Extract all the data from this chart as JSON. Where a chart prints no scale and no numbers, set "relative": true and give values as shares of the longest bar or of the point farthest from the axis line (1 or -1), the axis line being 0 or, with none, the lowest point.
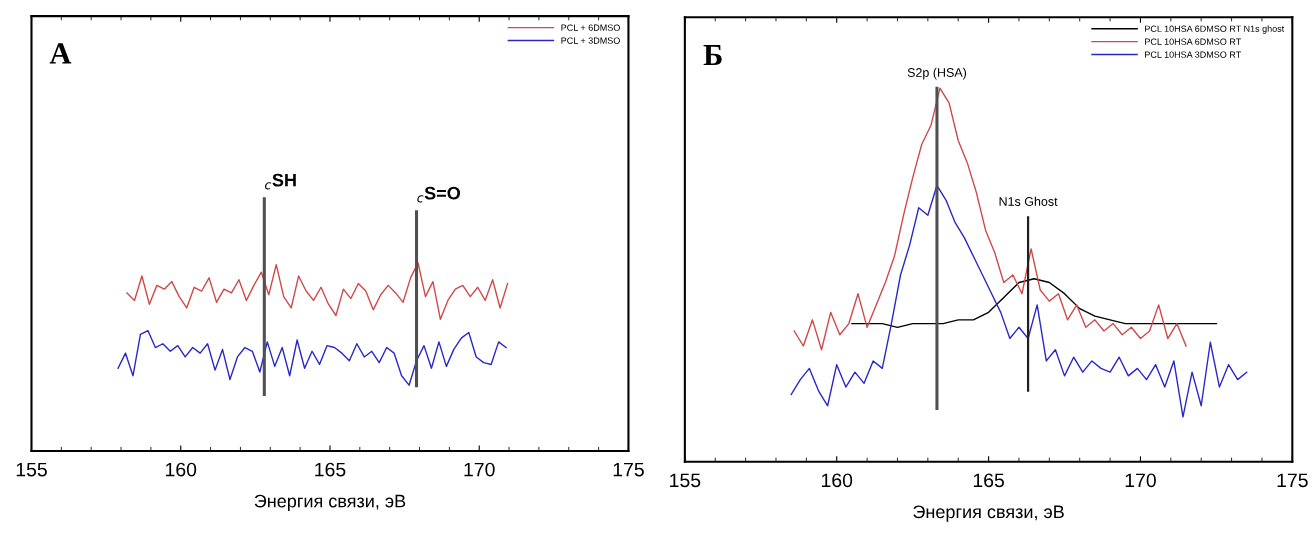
{
  "chart_data": [
    {
      "type": "line",
      "relative": true,
      "xlabel": "Энергия связи, эВ",
      "xlim": [
        155,
        175
      ],
      "xticks": [
        155,
        160,
        165,
        170,
        175
      ],
      "legend": "top right",
      "grid": false,
      "annotations": [
        "A"
      ],
      "ref_lines": [
        {
          "axis": "x",
          "value": 162.8,
          "label": "$_{c}$SH",
          "color": "#505050"
        },
        {
          "axis": "x",
          "value": 167.9,
          "label": "$_{c}$S=O",
          "color": "#505050"
        }
      ],
      "series": [
        {
          "name": "PCL + 6DMSO",
          "color": "#d04848",
          "x": [
            158.2,
            158.45,
            158.7,
            158.95,
            159.2,
            159.45,
            159.7,
            159.95,
            160.2,
            160.45,
            160.7,
            160.95,
            161.2,
            161.45,
            161.7,
            161.95,
            162.2,
            162.45,
            162.7,
            162.95,
            163.2,
            163.45,
            163.7,
            163.95,
            164.2,
            164.45,
            164.7,
            164.95,
            165.2,
            165.45,
            165.7,
            165.95,
            166.2,
            166.45,
            166.7,
            166.95,
            167.2,
            167.45,
            167.7,
            167.95,
            168.2,
            168.45,
            168.7,
            168.95,
            169.2,
            169.45,
            169.7,
            169.95,
            170.2,
            170.45,
            170.7,
            170.95
          ],
          "values": [
            0.84,
            0.8,
            0.93,
            0.78,
            0.88,
            0.86,
            0.9,
            0.82,
            0.76,
            0.87,
            0.85,
            0.92,
            0.79,
            0.86,
            0.84,
            0.91,
            0.8,
            0.88,
            0.95,
            0.83,
            0.99,
            0.82,
            0.76,
            0.93,
            0.85,
            0.8,
            0.87,
            0.78,
            0.72,
            0.86,
            0.81,
            0.89,
            0.85,
            0.75,
            0.83,
            0.88,
            0.84,
            0.79,
            0.92,
            1.0,
            0.82,
            0.9,
            0.7,
            0.8,
            0.86,
            0.88,
            0.82,
            0.87,
            0.8,
            0.91,
            0.76,
            0.89
          ]
        },
        {
          "name": "PCL + 3DMSO",
          "color": "#2828c8",
          "x": [
            157.9,
            158.15,
            158.4,
            158.65,
            158.9,
            159.15,
            159.4,
            159.65,
            159.9,
            160.15,
            160.4,
            160.65,
            160.9,
            161.15,
            161.4,
            161.65,
            161.9,
            162.15,
            162.4,
            162.65,
            162.9,
            163.15,
            163.4,
            163.65,
            163.9,
            164.15,
            164.4,
            164.65,
            164.9,
            165.15,
            165.4,
            165.65,
            165.9,
            166.15,
            166.4,
            166.65,
            166.9,
            167.15,
            167.4,
            167.65,
            167.9,
            168.15,
            168.4,
            168.65,
            168.9,
            169.15,
            169.4,
            169.65,
            169.9,
            170.15,
            170.4,
            170.65,
            170.9
          ],
          "values": [
            0.44,
            0.52,
            0.4,
            0.62,
            0.64,
            0.55,
            0.57,
            0.53,
            0.56,
            0.5,
            0.55,
            0.52,
            0.57,
            0.43,
            0.54,
            0.38,
            0.5,
            0.55,
            0.53,
            0.42,
            0.58,
            0.45,
            0.55,
            0.4,
            0.59,
            0.44,
            0.53,
            0.46,
            0.56,
            0.55,
            0.52,
            0.48,
            0.57,
            0.5,
            0.53,
            0.47,
            0.55,
            0.52,
            0.4,
            0.35,
            0.48,
            0.56,
            0.44,
            0.58,
            0.45,
            0.54,
            0.6,
            0.63,
            0.5,
            0.47,
            0.46,
            0.58,
            0.55
          ]
        }
      ]
    },
    {
      "type": "line",
      "relative": true,
      "xlabel": "Энергия связи, эВ",
      "xlim": [
        155,
        175
      ],
      "xticks": [
        155,
        160,
        165,
        170,
        175
      ],
      "legend": "top right",
      "grid": false,
      "annotations": [
        "Б"
      ],
      "ref_lines": [
        {
          "axis": "x",
          "value": 163.3,
          "label": "S2p (HSA)",
          "color": "#505050"
        },
        {
          "axis": "x",
          "value": 166.3,
          "label": "N1s Ghost",
          "color": "#202020"
        }
      ],
      "series": [
        {
          "name": "PCL 10HSA 6DMSO RT N1s ghost",
          "color": "#000000",
          "x": [
            160.5,
            161.0,
            161.5,
            162.0,
            162.5,
            163.0,
            163.5,
            164.0,
            164.5,
            165.0,
            165.5,
            166.0,
            166.5,
            167.0,
            167.5,
            168.0,
            168.5,
            169.0,
            169.5,
            170.0,
            170.5,
            171.0,
            171.5,
            172.0,
            172.5
          ],
          "values": [
            0.37,
            0.37,
            0.37,
            0.36,
            0.37,
            0.37,
            0.37,
            0.38,
            0.38,
            0.4,
            0.44,
            0.48,
            0.49,
            0.48,
            0.45,
            0.41,
            0.39,
            0.38,
            0.37,
            0.37,
            0.37,
            0.37,
            0.37,
            0.37,
            0.37
          ]
        },
        {
          "name": "PCL 10HSA 6DMSO RT",
          "color": "#d04848",
          "x": [
            158.6,
            158.9,
            159.2,
            159.5,
            159.8,
            160.1,
            160.4,
            160.7,
            161.0,
            161.3,
            161.6,
            161.9,
            162.2,
            162.5,
            162.8,
            163.1,
            163.4,
            163.7,
            164.0,
            164.3,
            164.6,
            164.9,
            165.2,
            165.5,
            165.8,
            166.1,
            166.4,
            166.7,
            167.0,
            167.3,
            167.6,
            167.9,
            168.2,
            168.5,
            168.8,
            169.1,
            169.4,
            169.7,
            170.0,
            170.3,
            170.6,
            170.9,
            171.2,
            171.5
          ],
          "values": [
            0.35,
            0.31,
            0.38,
            0.3,
            0.4,
            0.34,
            0.37,
            0.45,
            0.36,
            0.42,
            0.48,
            0.55,
            0.66,
            0.76,
            0.85,
            0.9,
            1.0,
            0.96,
            0.86,
            0.8,
            0.72,
            0.62,
            0.56,
            0.48,
            0.5,
            0.45,
            0.57,
            0.46,
            0.43,
            0.45,
            0.38,
            0.42,
            0.36,
            0.38,
            0.35,
            0.37,
            0.34,
            0.36,
            0.33,
            0.35,
            0.42,
            0.33,
            0.37,
            0.31
          ]
        },
        {
          "name": "PCL 10HSA 3DMSO RT",
          "color": "#2828c8",
          "x": [
            158.5,
            158.8,
            159.1,
            159.4,
            159.7,
            160.0,
            160.3,
            160.6,
            160.9,
            161.2,
            161.5,
            161.8,
            162.1,
            162.4,
            162.7,
            163.0,
            163.3,
            163.6,
            163.9,
            164.2,
            164.5,
            164.8,
            165.1,
            165.4,
            165.7,
            166.0,
            166.3,
            166.6,
            166.9,
            167.2,
            167.5,
            167.8,
            168.1,
            168.4,
            168.7,
            169.0,
            169.3,
            169.6,
            169.9,
            170.2,
            170.5,
            170.8,
            171.1,
            171.4,
            171.7,
            172.0,
            172.3,
            172.6,
            172.9,
            173.2,
            173.5
          ],
          "values": [
            0.18,
            0.22,
            0.25,
            0.19,
            0.15,
            0.26,
            0.2,
            0.24,
            0.21,
            0.27,
            0.25,
            0.37,
            0.5,
            0.58,
            0.68,
            0.66,
            0.74,
            0.7,
            0.64,
            0.6,
            0.55,
            0.5,
            0.45,
            0.4,
            0.33,
            0.36,
            0.33,
            0.42,
            0.27,
            0.3,
            0.23,
            0.28,
            0.24,
            0.27,
            0.25,
            0.24,
            0.28,
            0.23,
            0.25,
            0.22,
            0.26,
            0.2,
            0.27,
            0.12,
            0.24,
            0.15,
            0.32,
            0.2,
            0.26,
            0.22,
            0.24
          ]
        }
      ]
    }
  ]
}
